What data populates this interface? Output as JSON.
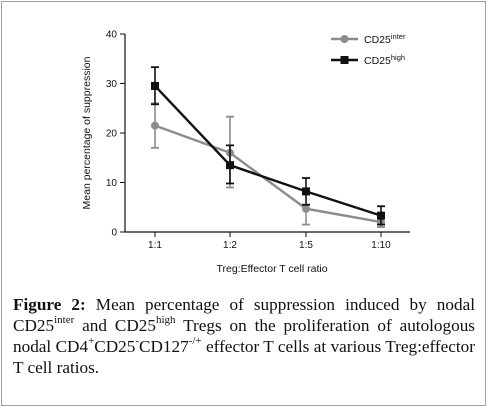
{
  "chart_data": {
    "type": "line",
    "categories": [
      "1:1",
      "1:2",
      "1:5",
      "1:10"
    ],
    "xlabel": "Treg:Effector T cell ratio",
    "ylabel": "Mean percentage of suppression",
    "ylim": [
      0,
      40
    ],
    "yticks": [
      "0",
      "10",
      "20",
      "30",
      "40"
    ],
    "legend_position": "top-right",
    "series": [
      {
        "name": "CD25",
        "name_sup": "inter",
        "color": "#8c8c8c",
        "marker": "circle",
        "values": [
          21.5,
          16,
          4.7,
          2
        ],
        "err_high": [
          26,
          23.3,
          5.5,
          3.2
        ],
        "err_low": [
          17,
          9,
          1.5,
          1
        ]
      },
      {
        "name": "CD25",
        "name_sup": "high",
        "color": "#111111",
        "marker": "square",
        "values": [
          29.5,
          13.5,
          8.2,
          3.3
        ],
        "err_high": [
          33.3,
          17.5,
          10.9,
          5.2
        ],
        "err_low": [
          25.8,
          9.8,
          5.5,
          1.5
        ]
      }
    ]
  },
  "caption": {
    "label": "Figure 2:",
    "parts": [
      {
        "t": " Mean percentage of suppression induced by nodal CD25"
      },
      {
        "sup": "inter"
      },
      {
        "t": " and CD25"
      },
      {
        "sup": "high"
      },
      {
        "t": " Tregs on the proliferation of autologous nodal CD4"
      },
      {
        "sup": "+"
      },
      {
        "t": "CD25"
      },
      {
        "sup": "-"
      },
      {
        "t": "CD127"
      },
      {
        "sup": "-/+"
      },
      {
        "t": " effector T cells at various Treg:effector T cell ratios."
      }
    ]
  }
}
